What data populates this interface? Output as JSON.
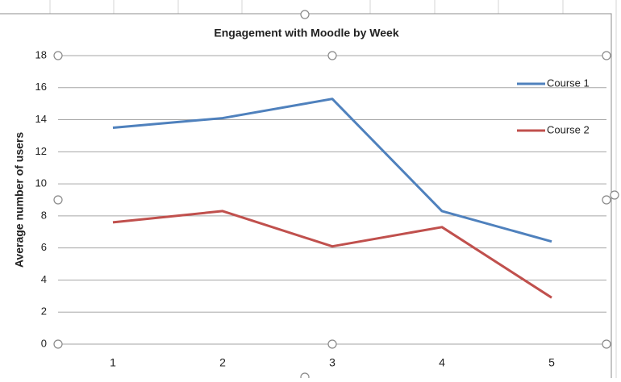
{
  "chart_data": {
    "type": "line",
    "title": "Engagement with Moodle by Week",
    "y_label": "Average number of users",
    "categories": [
      "1",
      "2",
      "3",
      "4",
      "5"
    ],
    "series": [
      {
        "name": "Course 1",
        "color": "#4f81bd",
        "values": [
          13.5,
          14.1,
          15.3,
          8.3,
          6.4
        ]
      },
      {
        "name": "Course 2",
        "color": "#c0504d",
        "values": [
          7.6,
          8.3,
          6.1,
          7.3,
          2.9
        ]
      }
    ],
    "ylim": [
      0,
      18
    ],
    "yticks": [
      0,
      2,
      4,
      6,
      8,
      10,
      12,
      14,
      16,
      18
    ],
    "grid": true,
    "legend": "right"
  }
}
